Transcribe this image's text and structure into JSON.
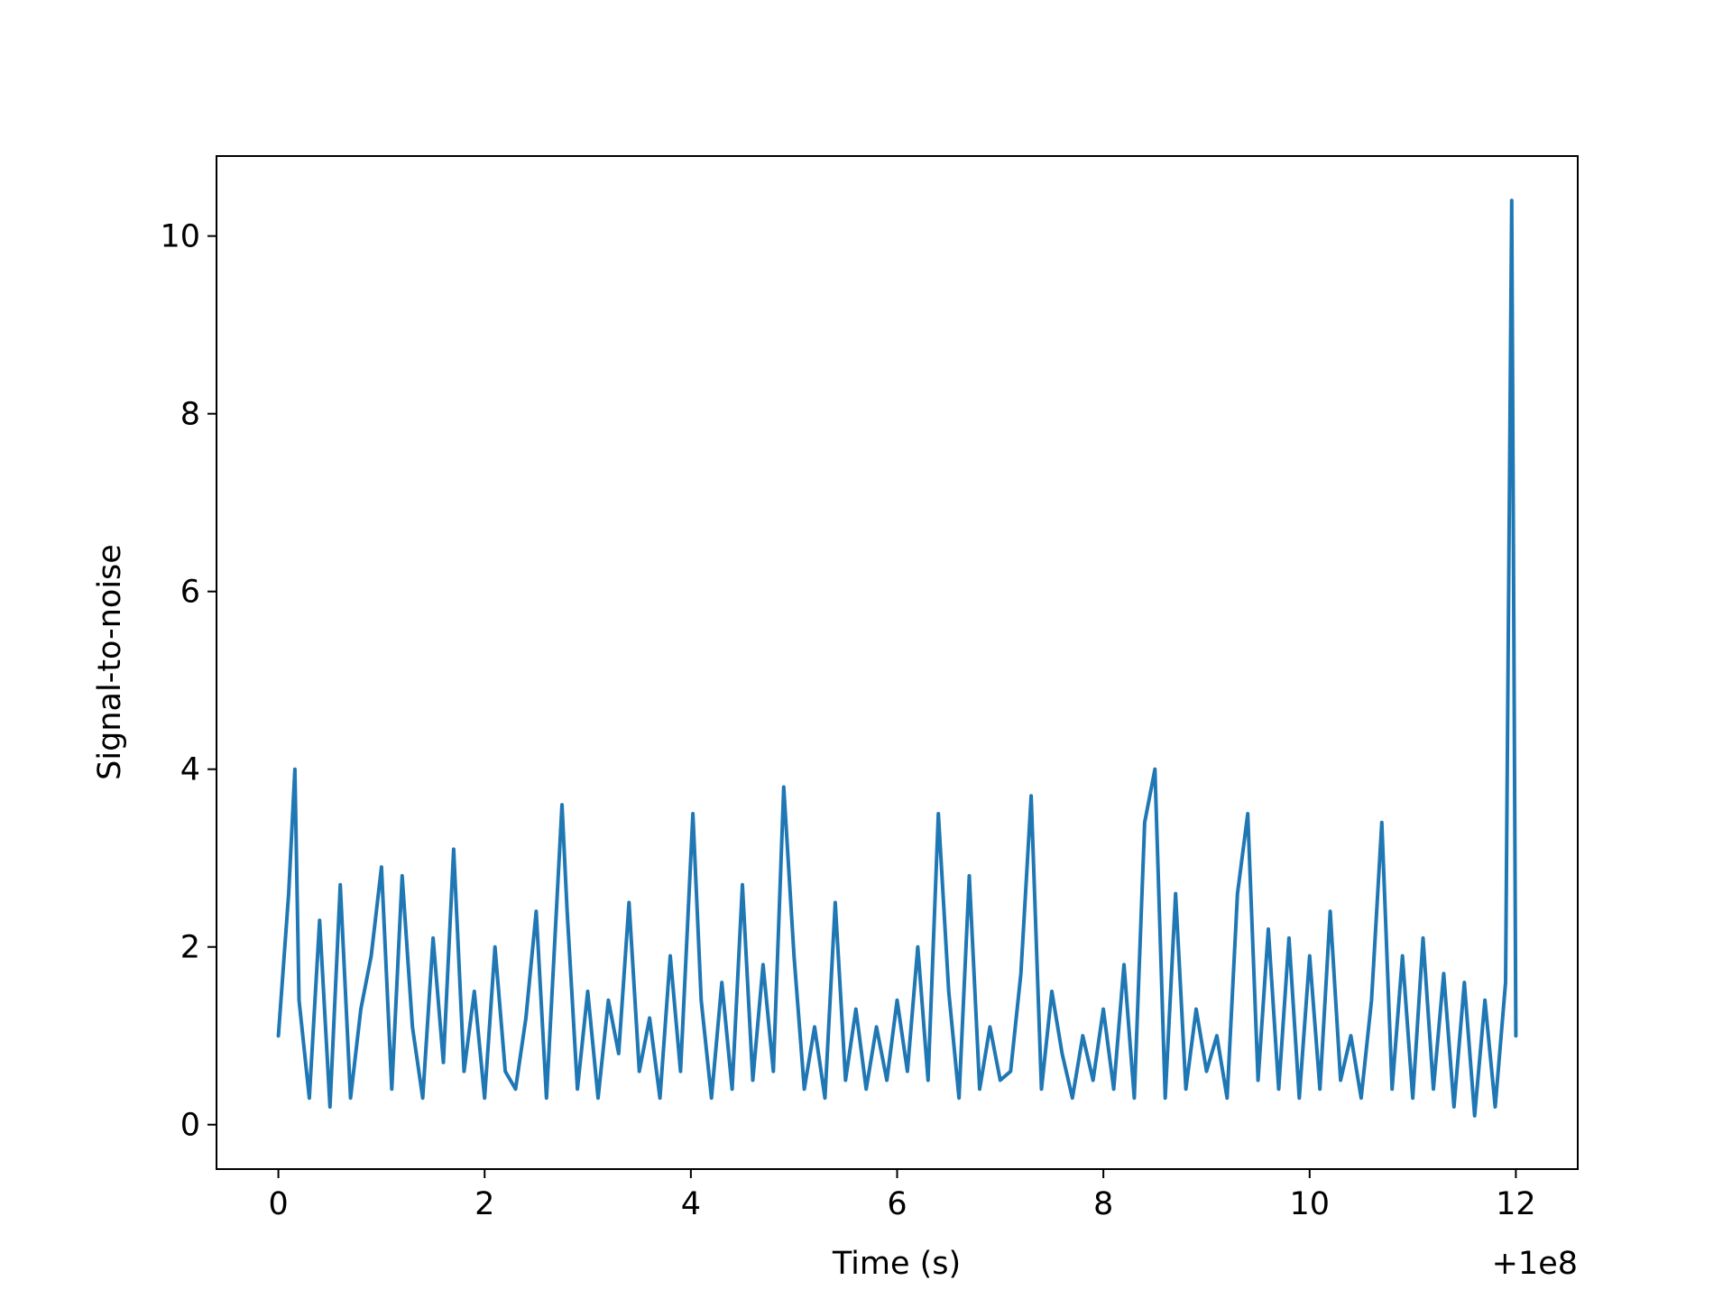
{
  "chart_data": {
    "type": "line",
    "title": "",
    "xlabel": "Time (s)",
    "ylabel": "Signal-to-noise",
    "x_offset_label": "+1e8",
    "xlim": [
      -0.6,
      12.6
    ],
    "ylim": [
      -0.5,
      10.9
    ],
    "x_ticks": [
      0,
      2,
      4,
      6,
      8,
      10,
      12
    ],
    "x_tick_labels": [
      "0",
      "2",
      "4",
      "6",
      "8",
      "10",
      "12"
    ],
    "y_ticks": [
      0,
      2,
      4,
      6,
      8,
      10
    ],
    "y_tick_labels": [
      "0",
      "2",
      "4",
      "6",
      "8",
      "10"
    ],
    "grid": false,
    "legend": "none",
    "line_color": "#1f77b4",
    "series": [
      {
        "x": [
          0.0,
          0.1,
          0.16,
          0.2,
          0.3,
          0.4,
          0.5,
          0.6,
          0.7,
          0.8,
          0.9,
          1.0,
          1.1,
          1.2,
          1.3,
          1.4,
          1.5,
          1.6,
          1.7,
          1.8,
          1.9,
          2.0,
          2.1,
          2.2,
          2.3,
          2.4,
          2.5,
          2.6,
          2.75,
          2.8,
          2.9,
          3.0,
          3.1,
          3.2,
          3.3,
          3.4,
          3.5,
          3.6,
          3.7,
          3.8,
          3.9,
          4.02,
          4.1,
          4.2,
          4.3,
          4.4,
          4.5,
          4.6,
          4.7,
          4.8,
          4.9,
          5.0,
          5.1,
          5.2,
          5.3,
          5.4,
          5.5,
          5.6,
          5.7,
          5.8,
          5.9,
          6.0,
          6.1,
          6.2,
          6.3,
          6.4,
          6.5,
          6.6,
          6.7,
          6.8,
          6.9,
          7.0,
          7.1,
          7.2,
          7.3,
          7.4,
          7.5,
          7.6,
          7.7,
          7.8,
          7.9,
          8.0,
          8.1,
          8.2,
          8.3,
          8.4,
          8.5,
          8.6,
          8.7,
          8.8,
          8.9,
          9.0,
          9.1,
          9.2,
          9.3,
          9.4,
          9.5,
          9.6,
          9.7,
          9.8,
          9.9,
          10.0,
          10.1,
          10.2,
          10.3,
          10.4,
          10.5,
          10.6,
          10.7,
          10.8,
          10.9,
          11.0,
          11.1,
          11.2,
          11.3,
          11.4,
          11.5,
          11.6,
          11.7,
          11.8,
          11.9,
          11.96,
          12.0
        ],
        "y": [
          1.0,
          2.6,
          4.0,
          1.4,
          0.3,
          2.3,
          0.2,
          2.7,
          0.3,
          1.3,
          1.9,
          2.9,
          0.4,
          2.8,
          1.1,
          0.3,
          2.1,
          0.7,
          3.1,
          0.6,
          1.5,
          0.3,
          2.0,
          0.6,
          0.4,
          1.2,
          2.4,
          0.3,
          3.6,
          2.4,
          0.4,
          1.5,
          0.3,
          1.4,
          0.8,
          2.5,
          0.6,
          1.2,
          0.3,
          1.9,
          0.6,
          3.5,
          1.4,
          0.3,
          1.6,
          0.4,
          2.7,
          0.5,
          1.8,
          0.6,
          3.8,
          1.9,
          0.4,
          1.1,
          0.3,
          2.5,
          0.5,
          1.3,
          0.4,
          1.1,
          0.5,
          1.4,
          0.6,
          2.0,
          0.5,
          3.5,
          1.5,
          0.3,
          2.8,
          0.4,
          1.1,
          0.5,
          0.6,
          1.7,
          3.7,
          0.4,
          1.5,
          0.8,
          0.3,
          1.0,
          0.5,
          1.3,
          0.4,
          1.8,
          0.3,
          3.4,
          4.0,
          0.3,
          2.6,
          0.4,
          1.3,
          0.6,
          1.0,
          0.3,
          2.6,
          3.5,
          0.5,
          2.2,
          0.4,
          2.1,
          0.3,
          1.9,
          0.4,
          2.4,
          0.5,
          1.0,
          0.3,
          1.4,
          3.4,
          0.4,
          1.9,
          0.3,
          2.1,
          0.4,
          1.7,
          0.2,
          1.6,
          0.1,
          1.4,
          0.2,
          1.6,
          10.4,
          1.0
        ]
      }
    ]
  }
}
